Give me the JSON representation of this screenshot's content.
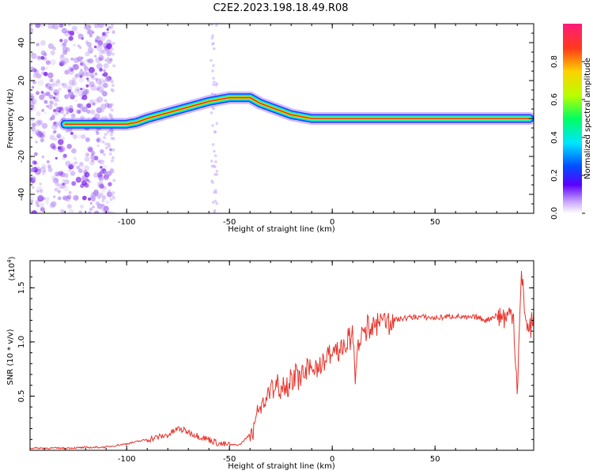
{
  "title": "C2E2.2023.198.18.49.R08",
  "colors": {
    "snr_line": "#e8332b",
    "ridge": "#ff2a1e",
    "background": "#ffffff"
  },
  "chart_data": [
    {
      "type": "heatmap",
      "name": "spectrogram",
      "xlabel": "Height of straight line (km)",
      "ylabel": "Frequency (Hz)",
      "xlim": [
        -147,
        98
      ],
      "ylim": [
        -50,
        50
      ],
      "xticks": [
        -100,
        -50,
        0,
        50
      ],
      "yticks": [
        -40,
        -20,
        0,
        20,
        40
      ],
      "grid": false,
      "colorbar": {
        "label": "Normalized spectral amplitude",
        "range": [
          0.0,
          1.0
        ],
        "ticks": [
          0.0,
          0.2,
          0.4,
          0.6,
          0.8
        ],
        "tick_labels": [
          "0.0",
          "0.2",
          "0.4",
          "0.6",
          "0.8"
        ]
      },
      "ridge": {
        "x": [
          -130,
          -120,
          -110,
          -100,
          -95,
          -90,
          -80,
          -70,
          -60,
          -50,
          -45,
          -40,
          -35,
          -30,
          -25,
          -20,
          -15,
          -10,
          0,
          10,
          20,
          40,
          60,
          80,
          90,
          96
        ],
        "y": [
          -3,
          -3,
          -3,
          -3,
          -2,
          0,
          3,
          6,
          9,
          11,
          11,
          11,
          8,
          6,
          4,
          2,
          1,
          0,
          0,
          0,
          0,
          0,
          0,
          0,
          0,
          0
        ]
      }
    },
    {
      "type": "line",
      "name": "snr",
      "xlabel": "Height of straight line (km)",
      "ylabel": "SNR (10 * v/v)",
      "yscale_label": "(x10",
      "yscale_exp": "4",
      "yscale_close": ")",
      "xlim": [
        -147,
        98
      ],
      "ylim": [
        0,
        1.75
      ],
      "xticks": [
        -100,
        -50,
        0,
        50
      ],
      "yticks": [
        0.5,
        1.0,
        1.5
      ],
      "ytick_labels": [
        "0.5",
        "1.0",
        "1.5"
      ],
      "grid": false,
      "series": [
        {
          "x": [
            -147,
            -130,
            -110,
            -100,
            -90,
            -80,
            -75,
            -70,
            -65,
            -60,
            -55,
            -50,
            -45,
            -40,
            -37,
            -35,
            -33,
            -30,
            -28,
            -25,
            -22,
            -20,
            -17,
            -15,
            -12,
            -10,
            -7,
            -5,
            -3,
            0,
            3,
            5,
            8,
            10,
            11,
            12,
            15,
            18,
            20,
            25,
            30,
            35,
            40,
            45,
            50,
            55,
            60,
            65,
            70,
            75,
            80,
            85,
            88,
            90,
            92,
            95,
            98
          ],
          "y": [
            0.02,
            0.02,
            0.03,
            0.06,
            0.1,
            0.14,
            0.2,
            0.17,
            0.13,
            0.1,
            0.06,
            0.05,
            0.05,
            0.15,
            0.3,
            0.38,
            0.45,
            0.55,
            0.58,
            0.6,
            0.62,
            0.65,
            0.68,
            0.7,
            0.72,
            0.75,
            0.8,
            0.78,
            0.85,
            0.9,
            0.92,
            0.95,
            1.0,
            1.05,
            0.7,
            0.85,
            1.1,
            1.12,
            1.15,
            1.18,
            1.2,
            1.22,
            1.23,
            1.23,
            1.22,
            1.23,
            1.24,
            1.22,
            1.23,
            1.2,
            1.25,
            1.22,
            1.3,
            0.55,
            1.6,
            1.1,
            1.2
          ]
        }
      ]
    }
  ]
}
